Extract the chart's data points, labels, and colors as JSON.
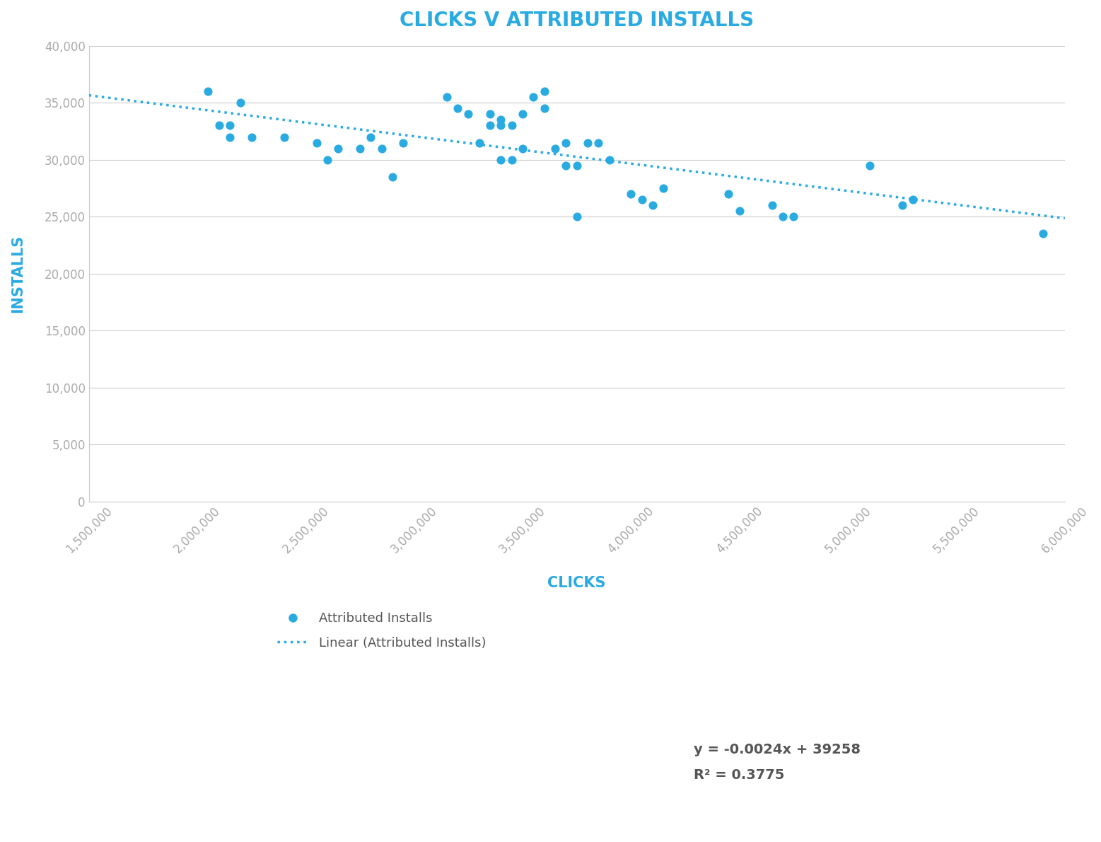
{
  "title": "CLICKS V ATTRIBUTED INSTALLS",
  "xlabel": "CLICKS",
  "ylabel": "INSTALLS",
  "scatter_color": "#29ABE2",
  "line_color": "#29ABE2",
  "background_color": "#ffffff",
  "grid_color": "#cccccc",
  "title_color": "#29ABE2",
  "axis_label_color": "#29ABE2",
  "tick_color": "#aaaaaa",
  "legend_scatter_label": "Attributed Installs",
  "legend_line_label": "Linear (Attributed Installs)",
  "equation": "y = -0.0024x + 39258",
  "r_squared": "R² = 0.3775",
  "xlim": [
    1500000,
    6000000
  ],
  "ylim": [
    0,
    40000
  ],
  "xticks": [
    1500000,
    2000000,
    2500000,
    3000000,
    3500000,
    4000000,
    4500000,
    5000000,
    5500000,
    6000000
  ],
  "yticks": [
    0,
    5000,
    10000,
    15000,
    20000,
    25000,
    30000,
    35000,
    40000
  ],
  "scatter_x": [
    2050000,
    2100000,
    2150000,
    2150000,
    2200000,
    2250000,
    2400000,
    2550000,
    2600000,
    2650000,
    2750000,
    2800000,
    2850000,
    2900000,
    2950000,
    3150000,
    3200000,
    3250000,
    3300000,
    3350000,
    3350000,
    3400000,
    3400000,
    3400000,
    3450000,
    3450000,
    3500000,
    3500000,
    3550000,
    3600000,
    3600000,
    3650000,
    3700000,
    3700000,
    3750000,
    3750000,
    3800000,
    3850000,
    3900000,
    4000000,
    4050000,
    4100000,
    4150000,
    4450000,
    4500000,
    4650000,
    4700000,
    4750000,
    5100000,
    5250000,
    5300000,
    5900000
  ],
  "scatter_y": [
    36000,
    33000,
    33000,
    32000,
    35000,
    32000,
    32000,
    31500,
    30000,
    31000,
    31000,
    32000,
    31000,
    28500,
    31500,
    35500,
    34500,
    34000,
    31500,
    33000,
    34000,
    30000,
    33000,
    33500,
    30000,
    33000,
    34000,
    31000,
    35500,
    36000,
    34500,
    31000,
    31500,
    29500,
    25000,
    29500,
    31500,
    31500,
    30000,
    27000,
    26500,
    26000,
    27500,
    27000,
    25500,
    26000,
    25000,
    25000,
    29500,
    26000,
    26500,
    23500
  ],
  "slope": -0.0024,
  "intercept": 39258
}
